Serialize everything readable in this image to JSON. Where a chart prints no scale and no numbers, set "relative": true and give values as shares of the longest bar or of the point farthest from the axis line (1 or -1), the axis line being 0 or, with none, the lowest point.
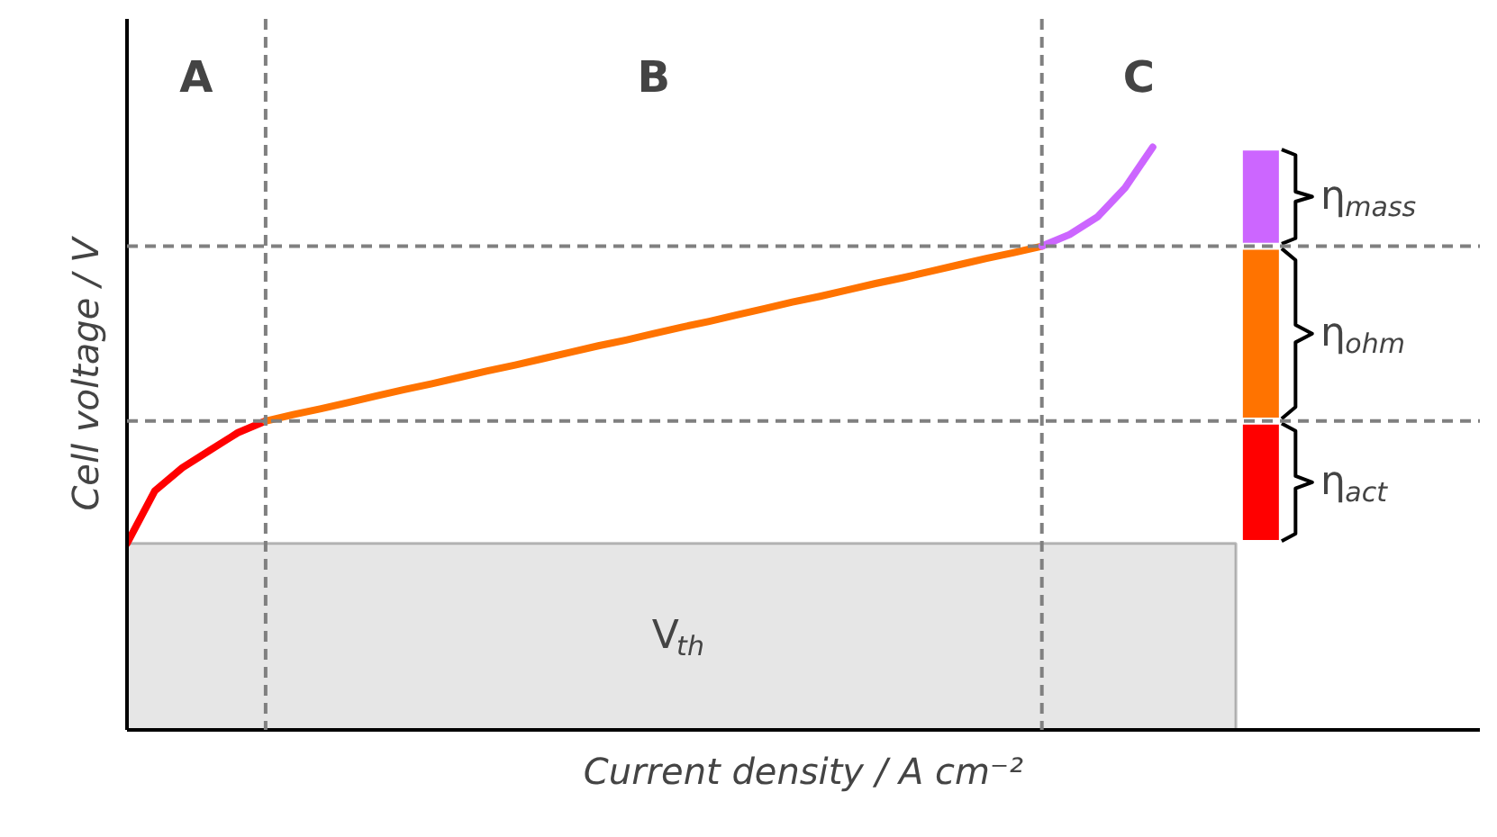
{
  "chart_data": {
    "type": "line",
    "relative": true,
    "xlabel": "Current density / A cm⁻²",
    "ylabel": "Cell voltage / V",
    "grid": false,
    "marker": "none",
    "categories": [
      null,
      null,
      null,
      null,
      null,
      null,
      null,
      null,
      null,
      null,
      null,
      null,
      null,
      null,
      null,
      null,
      null,
      null,
      null,
      null,
      null,
      null,
      null,
      null,
      null,
      null,
      null,
      null,
      null,
      null,
      null,
      null,
      null,
      null,
      null,
      null,
      null,
      null,
      null,
      null,
      null
    ],
    "series": [
      {
        "color": "#ff0000",
        "values": [
          0.32,
          0.41,
          0.45,
          0.48,
          0.51,
          0.53,
          null,
          null,
          null,
          null,
          null,
          null,
          null,
          null,
          null,
          null,
          null,
          null,
          null,
          null,
          null,
          null,
          null,
          null,
          null,
          null,
          null,
          null,
          null,
          null,
          null,
          null,
          null,
          null,
          null,
          null,
          null,
          null,
          null,
          null,
          null
        ]
      },
      {
        "color": "#ff7300",
        "values": [
          null,
          null,
          null,
          null,
          null,
          0.53,
          0.541,
          0.551,
          0.562,
          0.573,
          0.584,
          0.594,
          0.605,
          0.616,
          0.626,
          0.637,
          0.648,
          0.659,
          0.669,
          0.68,
          0.691,
          0.701,
          0.712,
          0.723,
          0.734,
          0.744,
          0.755,
          0.766,
          0.776,
          0.787,
          0.798,
          0.809,
          0.819,
          0.83,
          null,
          null,
          null,
          null,
          null,
          null,
          null
        ]
      },
      {
        "color": "#cc66ff",
        "values": [
          null,
          null,
          null,
          null,
          null,
          null,
          null,
          null,
          null,
          null,
          null,
          null,
          null,
          null,
          null,
          null,
          null,
          null,
          null,
          null,
          null,
          null,
          null,
          null,
          null,
          null,
          null,
          null,
          null,
          null,
          null,
          null,
          null,
          0.83,
          0.85,
          0.88,
          0.93,
          1.0,
          null,
          null,
          null
        ]
      }
    ],
    "bands": [
      {
        "axis": "y",
        "from": 0,
        "to": 0.32,
        "label": "V$_{th}$",
        "color": "#e6e6e6"
      }
    ],
    "ref_lines": [
      {
        "axis": "y",
        "value": 0.53,
        "color": "#808080",
        "line_style": "dashed"
      },
      {
        "axis": "y",
        "value": 0.83,
        "color": "#808080",
        "line_style": "dashed"
      }
    ],
    "annotations": [
      "A",
      "B",
      "C",
      "η$_{act}$",
      "η$_{ohm}$",
      "η$_{mass}$"
    ]
  }
}
